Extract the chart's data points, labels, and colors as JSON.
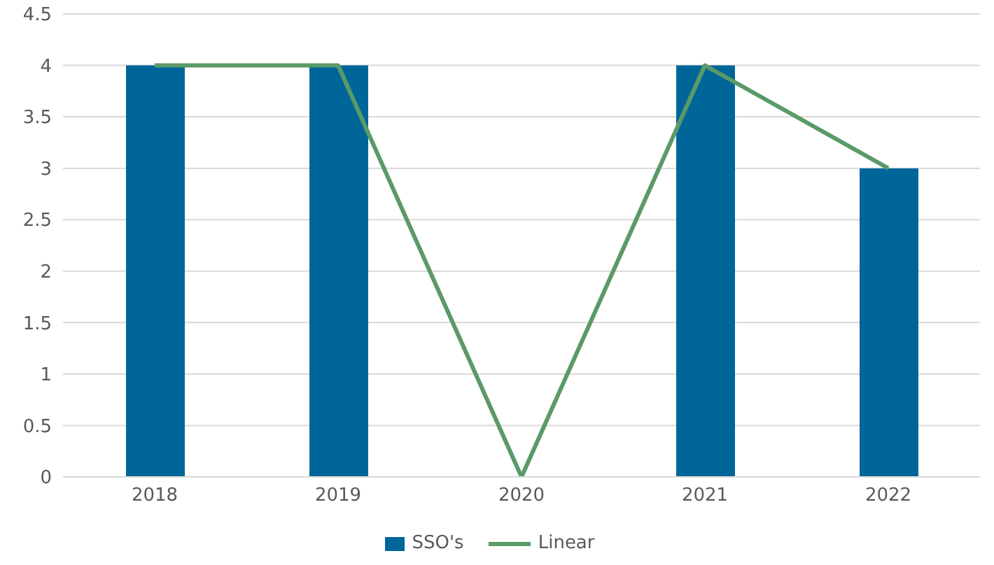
{
  "chart_data": {
    "type": "bar",
    "categories": [
      "2018",
      "2019",
      "2020",
      "2021",
      "2022"
    ],
    "series": [
      {
        "name": "SSO's",
        "color": "#00669a",
        "values": [
          4,
          4,
          0,
          4,
          3
        ]
      },
      {
        "name": "Linear",
        "type": "line",
        "color": "#5a9a68",
        "values": [
          4,
          4,
          0,
          4,
          3
        ]
      }
    ],
    "ylim": [
      0,
      4.5
    ],
    "yticks": [
      0,
      0.5,
      1,
      1.5,
      2,
      2.5,
      3,
      3.5,
      4,
      4.5
    ],
    "grid": "y",
    "legend": "bottom"
  }
}
